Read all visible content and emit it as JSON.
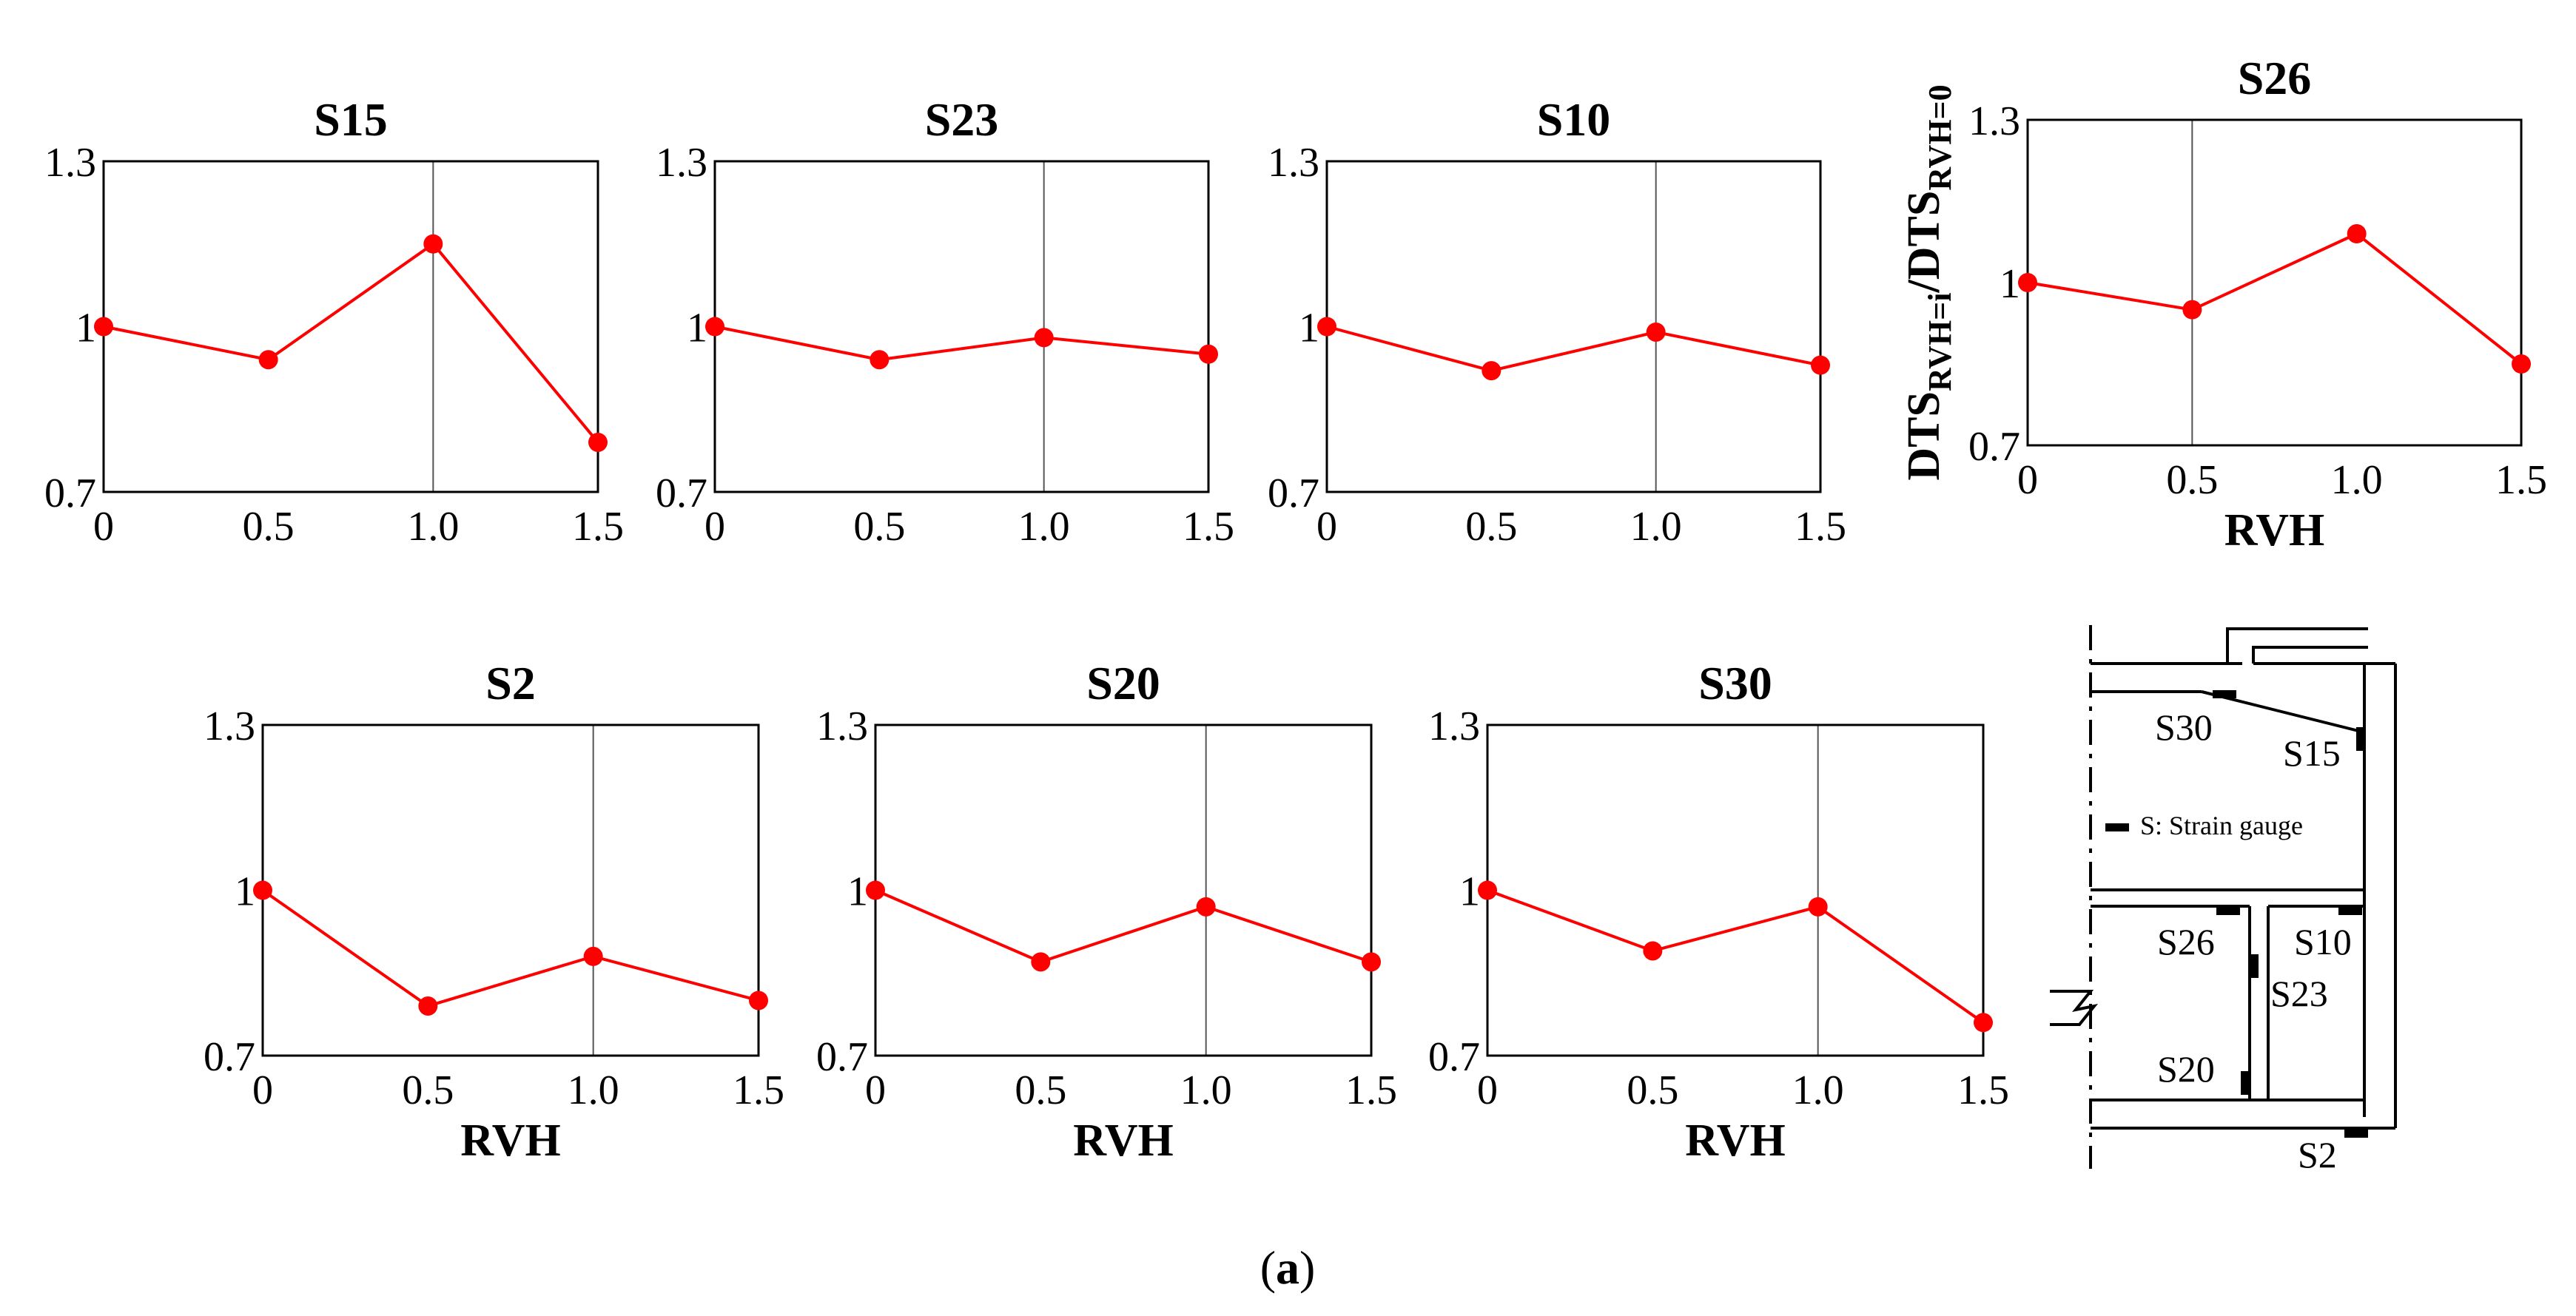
{
  "chart_data": [
    {
      "type": "line",
      "title": "S15",
      "categories": [
        "0",
        "0.5",
        "1.0",
        "1.5"
      ],
      "x": [
        0,
        0.5,
        1.0,
        1.5
      ],
      "values": [
        1.0,
        0.94,
        1.15,
        0.79
      ],
      "yticks": [
        "0.7",
        "1",
        "1.3"
      ],
      "ylim": [
        0.7,
        1.3
      ],
      "xlabel": "",
      "ylabel": ""
    },
    {
      "type": "line",
      "title": "S23",
      "categories": [
        "0",
        "0.5",
        "1.0",
        "1.5"
      ],
      "x": [
        0,
        0.5,
        1.0,
        1.5
      ],
      "values": [
        1.0,
        0.94,
        0.98,
        0.95
      ],
      "yticks": [
        "0.7",
        "1",
        "1.3"
      ],
      "ylim": [
        0.7,
        1.3
      ],
      "xlabel": "",
      "ylabel": ""
    },
    {
      "type": "line",
      "title": "S10",
      "categories": [
        "0",
        "0.5",
        "1.0",
        "1.5"
      ],
      "x": [
        0,
        0.5,
        1.0,
        1.5
      ],
      "values": [
        1.0,
        0.92,
        0.99,
        0.93
      ],
      "yticks": [
        "0.7",
        "1",
        "1.3"
      ],
      "ylim": [
        0.7,
        1.3
      ],
      "xlabel": "",
      "ylabel": ""
    },
    {
      "type": "line",
      "title": "S26",
      "categories": [
        "0",
        "0.5",
        "1.0",
        "1.5"
      ],
      "x": [
        0,
        0.5,
        1.0,
        1.5
      ],
      "values": [
        1.0,
        0.95,
        1.09,
        0.85
      ],
      "yticks": [
        "0.7",
        "1",
        "1.3"
      ],
      "ylim": [
        0.7,
        1.3
      ],
      "xlabel": "RVH",
      "ylabel": "DTS",
      "ylabel_sub1": "RVH=i",
      "ylabel_mid": "/DTS",
      "ylabel_sub2": "RVH=0"
    },
    {
      "type": "line",
      "title": "S2",
      "categories": [
        "0",
        "0.5",
        "1.0",
        "1.5"
      ],
      "x": [
        0,
        0.5,
        1.0,
        1.5
      ],
      "values": [
        1.0,
        0.79,
        0.88,
        0.8
      ],
      "yticks": [
        "0.7",
        "1",
        "1.3"
      ],
      "ylim": [
        0.7,
        1.3
      ],
      "xlabel": "RVH",
      "ylabel": ""
    },
    {
      "type": "line",
      "title": "S20",
      "categories": [
        "0",
        "0.5",
        "1.0",
        "1.5"
      ],
      "x": [
        0,
        0.5,
        1.0,
        1.5
      ],
      "values": [
        1.0,
        0.87,
        0.97,
        0.87
      ],
      "yticks": [
        "0.7",
        "1",
        "1.3"
      ],
      "ylim": [
        0.7,
        1.3
      ],
      "xlabel": "RVH",
      "ylabel": ""
    },
    {
      "type": "line",
      "title": "S30",
      "categories": [
        "0",
        "0.5",
        "1.0",
        "1.5"
      ],
      "x": [
        0,
        0.5,
        1.0,
        1.5
      ],
      "values": [
        1.0,
        0.89,
        0.97,
        0.76
      ],
      "yticks": [
        "0.7",
        "1",
        "1.3"
      ],
      "ylim": [
        0.7,
        1.3
      ],
      "xlabel": "RVH",
      "ylabel": ""
    }
  ],
  "style": {
    "line_color": "#ff0000",
    "axis_color": "#000000",
    "grid_color": "#555555"
  },
  "diagram": {
    "labels": {
      "S30": "S30",
      "S15": "S15",
      "S26": "S26",
      "S10": "S10",
      "S23": "S23",
      "S20": "S20",
      "S2": "S2"
    },
    "legend": "S:  Strain gauge"
  },
  "caption": {
    "open": "(",
    "letter": "a",
    "close": ")"
  }
}
